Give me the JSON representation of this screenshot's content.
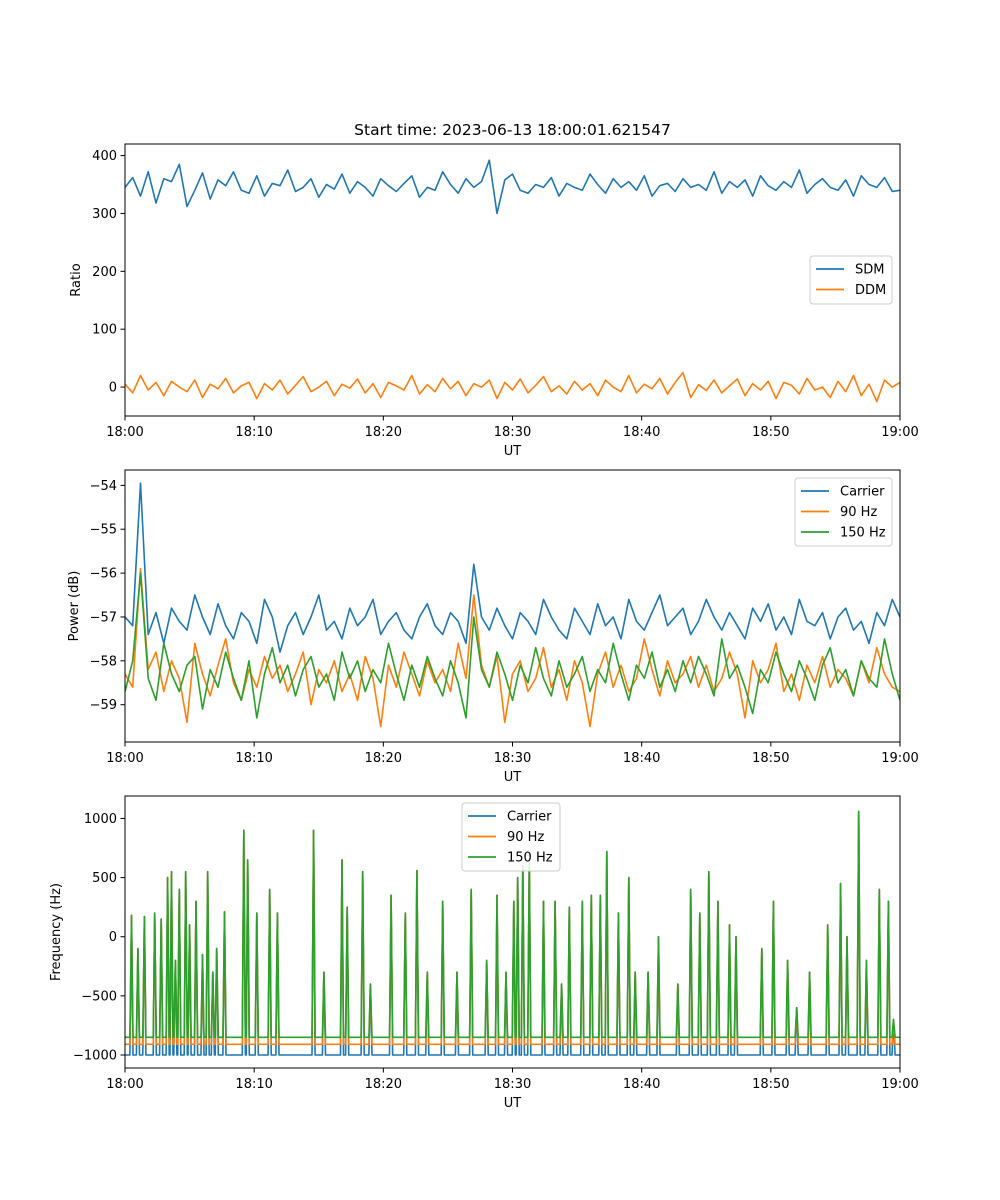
{
  "figure": {
    "title": "Start time: 2023-06-13 18:00:01.621547"
  },
  "chart_data": [
    {
      "type": "line",
      "xlabel": "UT",
      "ylabel": "Ratio",
      "x_range": [
        "18:00",
        "19:00"
      ],
      "x_ticks": [
        "18:00",
        "18:10",
        "18:20",
        "18:30",
        "18:40",
        "18:50",
        "19:00"
      ],
      "ylim": [
        -50,
        420
      ],
      "y_ticks": [
        0,
        100,
        200,
        300,
        400
      ],
      "legend_position": "center-right",
      "grid": false,
      "series": [
        {
          "name": "SDM",
          "color": "#1f77b4",
          "values": [
            345,
            362,
            330,
            372,
            318,
            360,
            355,
            385,
            312,
            340,
            370,
            325,
            358,
            348,
            372,
            340,
            335,
            365,
            330,
            352,
            348,
            375,
            338,
            345,
            360,
            328,
            350,
            342,
            368,
            335,
            355,
            345,
            330,
            360,
            348,
            338,
            352,
            365,
            328,
            345,
            340,
            372,
            350,
            335,
            360,
            345,
            355,
            392,
            300,
            358,
            368,
            340,
            335,
            350,
            345,
            362,
            330,
            352,
            345,
            340,
            368,
            350,
            335,
            360,
            345,
            355,
            340,
            365,
            330,
            348,
            352,
            338,
            360,
            345,
            350,
            340,
            372,
            335,
            355,
            345,
            358,
            330,
            365,
            348,
            340,
            355,
            345,
            375,
            335,
            350,
            360,
            345,
            340,
            358,
            330,
            365,
            350,
            345,
            362,
            338,
            340
          ]
        },
        {
          "name": "DDM",
          "color": "#ff7f0e",
          "values": [
            5,
            -10,
            20,
            -5,
            8,
            -15,
            10,
            0,
            -8,
            12,
            -18,
            5,
            -3,
            15,
            -10,
            2,
            8,
            -20,
            6,
            -5,
            12,
            -12,
            3,
            18,
            -8,
            0,
            10,
            -15,
            5,
            -2,
            14,
            -10,
            6,
            -18,
            8,
            2,
            -5,
            20,
            -12,
            4,
            -8,
            15,
            -3,
            10,
            -15,
            6,
            0,
            12,
            -20,
            8,
            -5,
            14,
            -10,
            3,
            18,
            -8,
            2,
            -12,
            10,
            -5,
            6,
            -15,
            12,
            0,
            -8,
            20,
            -10,
            5,
            -3,
            15,
            -12,
            8,
            25,
            -18,
            4,
            -6,
            12,
            -10,
            2,
            14,
            -15,
            6,
            -5,
            10,
            -20,
            8,
            3,
            -12,
            15,
            -5,
            0,
            -18,
            10,
            -8,
            20,
            -15,
            5,
            -25,
            12,
            0,
            8
          ]
        }
      ]
    },
    {
      "type": "line",
      "xlabel": "UT",
      "ylabel": "Power (dB)",
      "x_range": [
        "18:00",
        "19:00"
      ],
      "x_ticks": [
        "18:00",
        "18:10",
        "18:20",
        "18:30",
        "18:40",
        "18:50",
        "19:00"
      ],
      "ylim": [
        -59.85,
        -53.65
      ],
      "y_ticks": [
        -54,
        -55,
        -56,
        -57,
        -58,
        -59
      ],
      "legend_position": "top-right",
      "grid": false,
      "series": [
        {
          "name": "Carrier",
          "color": "#1f77b4",
          "values": [
            -57.0,
            -57.2,
            -53.95,
            -57.4,
            -56.9,
            -57.6,
            -56.8,
            -57.1,
            -57.3,
            -56.5,
            -57.0,
            -57.4,
            -56.7,
            -57.2,
            -57.5,
            -56.9,
            -57.1,
            -57.6,
            -56.6,
            -57.0,
            -57.8,
            -57.2,
            -56.9,
            -57.4,
            -57.0,
            -56.5,
            -57.3,
            -57.1,
            -57.5,
            -56.8,
            -57.2,
            -57.0,
            -56.6,
            -57.4,
            -57.1,
            -56.9,
            -57.3,
            -57.5,
            -57.0,
            -56.7,
            -57.2,
            -57.4,
            -56.9,
            -57.1,
            -57.6,
            -55.8,
            -57.0,
            -57.3,
            -56.8,
            -57.2,
            -57.5,
            -56.9,
            -57.1,
            -57.4,
            -56.6,
            -57.0,
            -57.3,
            -57.5,
            -56.8,
            -57.1,
            -57.4,
            -56.7,
            -57.2,
            -57.0,
            -57.5,
            -56.6,
            -57.1,
            -57.3,
            -56.9,
            -56.5,
            -57.2,
            -57.0,
            -56.8,
            -57.4,
            -57.1,
            -56.6,
            -57.0,
            -57.3,
            -56.9,
            -57.2,
            -57.5,
            -56.8,
            -57.1,
            -56.7,
            -57.3,
            -57.0,
            -57.4,
            -56.6,
            -57.1,
            -57.2,
            -56.9,
            -57.5,
            -57.0,
            -56.8,
            -57.3,
            -57.1,
            -57.6,
            -56.9,
            -57.2,
            -56.6,
            -57.0
          ]
        },
        {
          "name": "90 Hz",
          "color": "#ff7f0e",
          "values": [
            -58.3,
            -58.6,
            -55.9,
            -58.2,
            -57.8,
            -58.7,
            -58.0,
            -58.4,
            -59.4,
            -57.6,
            -58.3,
            -58.8,
            -58.1,
            -57.5,
            -58.5,
            -58.9,
            -58.2,
            -58.6,
            -57.9,
            -58.4,
            -58.1,
            -58.7,
            -58.3,
            -57.8,
            -59.0,
            -58.2,
            -58.5,
            -58.0,
            -58.7,
            -58.3,
            -58.9,
            -57.9,
            -58.4,
            -59.5,
            -58.1,
            -58.6,
            -57.8,
            -58.3,
            -58.8,
            -58.0,
            -58.5,
            -58.2,
            -58.7,
            -57.6,
            -58.4,
            -56.5,
            -58.1,
            -58.6,
            -57.9,
            -59.4,
            -58.3,
            -58.0,
            -58.7,
            -58.4,
            -57.7,
            -58.6,
            -58.2,
            -58.9,
            -58.0,
            -58.5,
            -59.5,
            -58.3,
            -57.8,
            -58.6,
            -58.1,
            -58.7,
            -58.4,
            -57.5,
            -58.2,
            -58.8,
            -58.0,
            -58.5,
            -58.3,
            -57.9,
            -58.6,
            -58.1,
            -58.7,
            -58.4,
            -57.8,
            -58.3,
            -59.3,
            -58.0,
            -58.5,
            -58.2,
            -57.6,
            -58.7,
            -58.3,
            -58.9,
            -58.1,
            -58.5,
            -57.9,
            -58.6,
            -58.2,
            -58.4,
            -58.8,
            -58.0,
            -58.5,
            -57.7,
            -58.3,
            -58.6,
            -58.7
          ]
        },
        {
          "name": "150 Hz",
          "color": "#2ca02c",
          "values": [
            -58.7,
            -58.0,
            -56.0,
            -58.4,
            -58.9,
            -57.6,
            -58.3,
            -58.7,
            -58.1,
            -57.9,
            -59.1,
            -58.2,
            -58.6,
            -57.8,
            -58.4,
            -58.9,
            -58.0,
            -59.3,
            -58.3,
            -57.7,
            -58.5,
            -58.1,
            -58.8,
            -58.2,
            -57.9,
            -58.6,
            -58.3,
            -58.9,
            -57.8,
            -58.4,
            -58.0,
            -58.7,
            -58.2,
            -58.5,
            -57.6,
            -58.3,
            -58.9,
            -58.1,
            -58.6,
            -57.9,
            -58.4,
            -58.8,
            -58.0,
            -58.5,
            -59.3,
            -57.0,
            -58.2,
            -58.6,
            -57.8,
            -58.3,
            -58.9,
            -58.1,
            -58.5,
            -57.7,
            -58.4,
            -58.8,
            -58.0,
            -58.6,
            -58.3,
            -57.9,
            -58.7,
            -58.2,
            -58.5,
            -57.6,
            -58.3,
            -58.9,
            -58.1,
            -58.4,
            -57.8,
            -58.6,
            -58.2,
            -58.7,
            -58.0,
            -58.5,
            -57.9,
            -58.3,
            -58.8,
            -57.5,
            -58.4,
            -58.1,
            -58.6,
            -59.2,
            -58.2,
            -58.5,
            -57.8,
            -58.3,
            -58.7,
            -58.0,
            -58.4,
            -58.9,
            -58.1,
            -57.7,
            -58.5,
            -58.2,
            -58.8,
            -58.0,
            -58.4,
            -58.6,
            -57.5,
            -58.3,
            -58.9
          ]
        }
      ]
    },
    {
      "type": "line",
      "xlabel": "UT",
      "ylabel": "Frequency (Hz)",
      "x_range": [
        "18:00",
        "19:00"
      ],
      "x_ticks": [
        "18:00",
        "18:10",
        "18:20",
        "18:30",
        "18:40",
        "18:50",
        "19:00"
      ],
      "ylim": [
        -1110,
        1190
      ],
      "y_ticks": [
        1000,
        500,
        0,
        -500,
        -1000
      ],
      "legend_position": "top-center",
      "grid": false,
      "series": [
        {
          "name": "Carrier",
          "color": "#1f77b4",
          "baseline": -1000
        },
        {
          "name": "90 Hz",
          "color": "#ff7f0e",
          "baseline": -910
        },
        {
          "name": "150 Hz",
          "color": "#2ca02c",
          "baseline": -850,
          "spikes": [
            [
              0.5,
              180
            ],
            [
              1.0,
              -100
            ],
            [
              1.5,
              170
            ],
            [
              2.3,
              200
            ],
            [
              2.8,
              150
            ],
            [
              3.3,
              500
            ],
            [
              3.6,
              550
            ],
            [
              3.9,
              -200
            ],
            [
              4.2,
              400
            ],
            [
              4.7,
              550
            ],
            [
              5.0,
              100
            ],
            [
              5.5,
              300
            ],
            [
              6.0,
              -150
            ],
            [
              6.4,
              550
            ],
            [
              6.8,
              -300
            ],
            [
              7.1,
              -100
            ],
            [
              7.7,
              210
            ],
            [
              9.2,
              900
            ],
            [
              9.5,
              650
            ],
            [
              10.2,
              200
            ],
            [
              11.2,
              400
            ],
            [
              11.8,
              200
            ],
            [
              14.6,
              900
            ],
            [
              15.4,
              -300
            ],
            [
              16.8,
              650
            ],
            [
              17.2,
              250
            ],
            [
              18.4,
              550
            ],
            [
              19.0,
              -400
            ],
            [
              20.6,
              350
            ],
            [
              21.7,
              200
            ],
            [
              22.6,
              560
            ],
            [
              23.4,
              -300
            ],
            [
              24.6,
              300
            ],
            [
              25.7,
              -300
            ],
            [
              26.8,
              400
            ],
            [
              28.0,
              -200
            ],
            [
              28.8,
              350
            ],
            [
              29.5,
              -300
            ],
            [
              30.1,
              300
            ],
            [
              30.4,
              500
            ],
            [
              30.8,
              600
            ],
            [
              31.3,
              650
            ],
            [
              32.4,
              300
            ],
            [
              33.3,
              300
            ],
            [
              33.8,
              -400
            ],
            [
              34.4,
              250
            ],
            [
              35.4,
              300
            ],
            [
              36.1,
              350
            ],
            [
              36.8,
              350
            ],
            [
              37.3,
              720
            ],
            [
              38.2,
              200
            ],
            [
              39.0,
              500
            ],
            [
              39.5,
              -300
            ],
            [
              40.5,
              -300
            ],
            [
              41.3,
              0
            ],
            [
              42.8,
              -400
            ],
            [
              43.8,
              400
            ],
            [
              44.5,
              200
            ],
            [
              45.2,
              550
            ],
            [
              45.9,
              300
            ],
            [
              46.8,
              100
            ],
            [
              47.3,
              0
            ],
            [
              49.3,
              -100
            ],
            [
              50.2,
              300
            ],
            [
              51.3,
              -200
            ],
            [
              52.0,
              -600
            ],
            [
              53.0,
              -300
            ],
            [
              54.4,
              100
            ],
            [
              55.4,
              450
            ],
            [
              55.9,
              0
            ],
            [
              56.8,
              1060
            ],
            [
              57.4,
              -200
            ],
            [
              58.4,
              400
            ],
            [
              59.1,
              300
            ],
            [
              59.5,
              -700
            ]
          ]
        }
      ]
    }
  ]
}
